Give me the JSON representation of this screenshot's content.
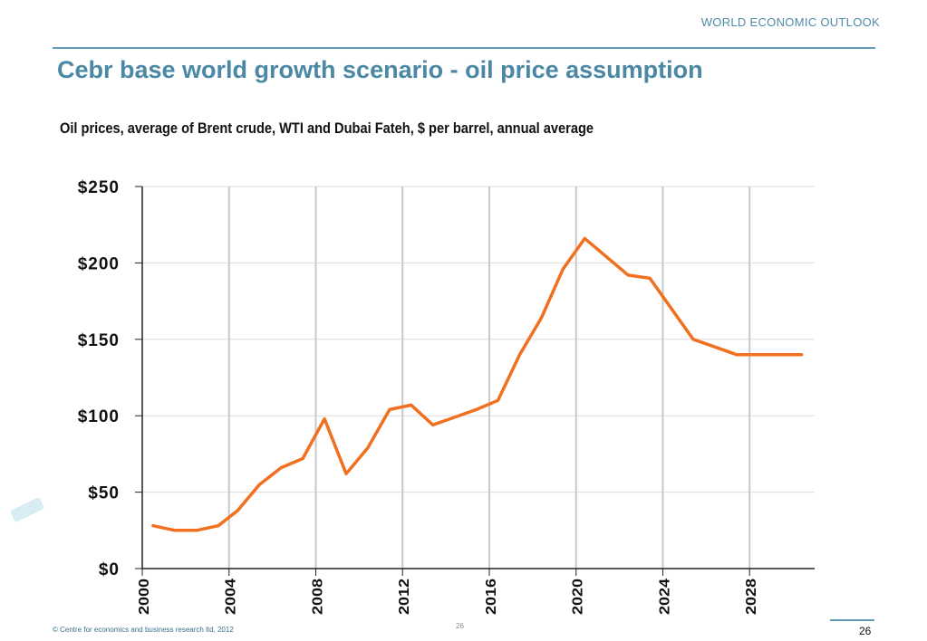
{
  "header": {
    "tag": "WORLD ECONOMIC OUTLOOK",
    "title": "Cebr base world growth scenario  - oil price assumption",
    "subtitle": "Oil prices, average of  Brent crude, WTI and Dubai Fateh, $ per barrel, annual average"
  },
  "colors": {
    "accent": "#4b88a5",
    "line": "#f07020",
    "grid": "#c8c8c8"
  },
  "chart_data": {
    "type": "line",
    "title": "",
    "xlabel": "",
    "ylabel": "",
    "xlim": [
      2000,
      2031
    ],
    "ylim": [
      0,
      250
    ],
    "y_ticks": [
      0,
      50,
      100,
      150,
      200,
      250
    ],
    "y_tick_labels": [
      "$0",
      "$50",
      "$100",
      "$150",
      "$200",
      "$250"
    ],
    "x_ticks": [
      2000,
      2004,
      2008,
      2012,
      2016,
      2020,
      2024,
      2028
    ],
    "x_tick_labels": [
      "2000",
      "2004",
      "2008",
      "2012",
      "2016",
      "2020",
      "2024",
      "2028"
    ],
    "grid": "vertical and horizontal",
    "legend": "none",
    "series": [
      {
        "x": [
          2000.5,
          2001.5,
          2002.5,
          2003.5,
          2004.4,
          2005.4,
          2006.4,
          2007.4,
          2008.4,
          2009.4,
          2010.4,
          2011.4,
          2012.4,
          2013.4,
          2014.4,
          2015.4,
          2016.4,
          2017.4,
          2018.4,
          2019.4,
          2020.4,
          2021.4,
          2022.4,
          2023.4,
          2024.4,
          2025.4,
          2026.4,
          2027.4,
          2028.4,
          2029.4,
          2030.4
        ],
        "values": [
          28,
          25,
          25,
          28,
          38,
          55,
          66,
          72,
          98,
          62,
          79,
          104,
          107,
          94,
          99,
          104,
          110,
          140,
          164,
          196,
          216,
          204,
          192,
          190,
          170,
          150,
          145,
          140,
          140,
          140,
          140
        ]
      }
    ]
  },
  "footer": {
    "copyright": "© Centre for economics and business research ltd, 2012",
    "center_mark": "26",
    "page_number": "26"
  }
}
